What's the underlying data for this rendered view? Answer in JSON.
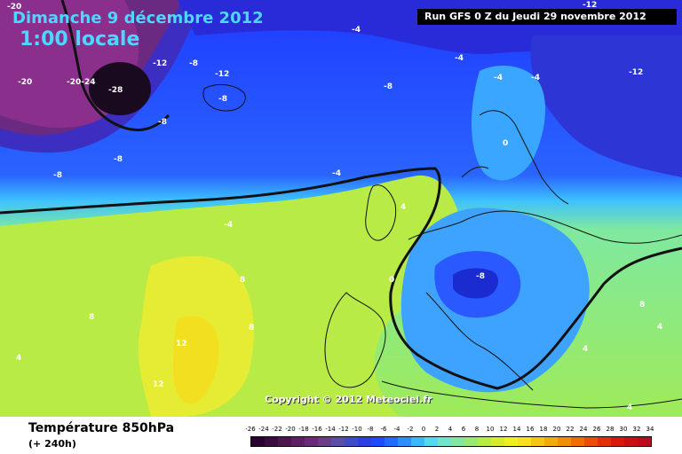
{
  "header": {
    "date": "Dimanche 9 décembre 2012",
    "time": "1:00 locale",
    "run": "Run GFS 0 Z du Jeudi 29 novembre 2012"
  },
  "copyright": "Copyright © 2012 Meteociel.fr",
  "footer": {
    "title": "Température 850hPa",
    "subtitle": "(+ 240h)"
  },
  "legend": {
    "labels": [
      "-26",
      "-24",
      "-22",
      "-20",
      "-18",
      "-16",
      "-14",
      "-12",
      "-10",
      "-8",
      "-6",
      "-4",
      "-2",
      "0",
      "2",
      "4",
      "6",
      "8",
      "10",
      "12",
      "14",
      "16",
      "18",
      "20",
      "22",
      "24",
      "26",
      "28",
      "30",
      "32",
      "34"
    ],
    "colors": [
      "#2a0030",
      "#3b0a3f",
      "#4c1451",
      "#5e1e63",
      "#6b2a78",
      "#6a3c8a",
      "#5a4ea8",
      "#3f4cc9",
      "#2a40e0",
      "#1b4cff",
      "#1f6dff",
      "#2a90ff",
      "#3cb8ff",
      "#55d8f2",
      "#6ee6cc",
      "#7fe9a0",
      "#97ea6e",
      "#b7eb46",
      "#d8ea2e",
      "#eef01f",
      "#f8e020",
      "#f6c516",
      "#f4a90e",
      "#f28d08",
      "#ee6e06",
      "#ea4e05",
      "#e03005",
      "#d61a08",
      "#c80f12",
      "#b90c1c"
    ]
  },
  "map_labels": [
    {
      "text": "-20",
      "color": "#ffffff"
    },
    {
      "text": "-20",
      "color": "#ffffff"
    },
    {
      "text": "-20-24",
      "color": "#ffffff"
    },
    {
      "text": "-28",
      "color": "#ffffff"
    },
    {
      "text": "-12",
      "color": "#ffffff"
    },
    {
      "text": "-8",
      "color": "#ffffff"
    },
    {
      "text": "-12",
      "color": "#ffffff"
    },
    {
      "text": "-8",
      "color": "#ffffff"
    },
    {
      "text": "-8",
      "color": "#ffffff"
    },
    {
      "text": "-8",
      "color": "#ffffff"
    },
    {
      "text": "-8",
      "color": "#ffffff"
    },
    {
      "text": "-4",
      "color": "#ffffff"
    },
    {
      "text": "-8",
      "color": "#ffffff"
    },
    {
      "text": "-4",
      "color": "#ffffff"
    },
    {
      "text": "-4",
      "color": "#ffffff"
    },
    {
      "text": "-4",
      "color": "#ffffff"
    },
    {
      "text": "-4",
      "color": "#ffffff"
    },
    {
      "text": "-12",
      "color": "#ffffff"
    },
    {
      "text": "-12",
      "color": "#ffffff"
    },
    {
      "text": "0",
      "color": "#ffffff"
    },
    {
      "text": "4",
      "color": "#ffffff"
    },
    {
      "text": "-4",
      "color": "#ffffff"
    },
    {
      "text": "0",
      "color": "#ffffff"
    },
    {
      "text": "-8",
      "color": "#ffffff"
    },
    {
      "text": "8",
      "color": "#ffffff"
    },
    {
      "text": "8",
      "color": "#ffffff"
    },
    {
      "text": "8",
      "color": "#ffffff"
    },
    {
      "text": "4",
      "color": "#ffffff"
    },
    {
      "text": "12",
      "color": "#ffffff"
    },
    {
      "text": "12",
      "color": "#ffffff"
    },
    {
      "text": "4",
      "color": "#ffffff"
    },
    {
      "text": "4",
      "color": "#ffffff"
    },
    {
      "text": "4",
      "color": "#ffffff"
    },
    {
      "text": "8",
      "color": "#ffffff"
    }
  ]
}
